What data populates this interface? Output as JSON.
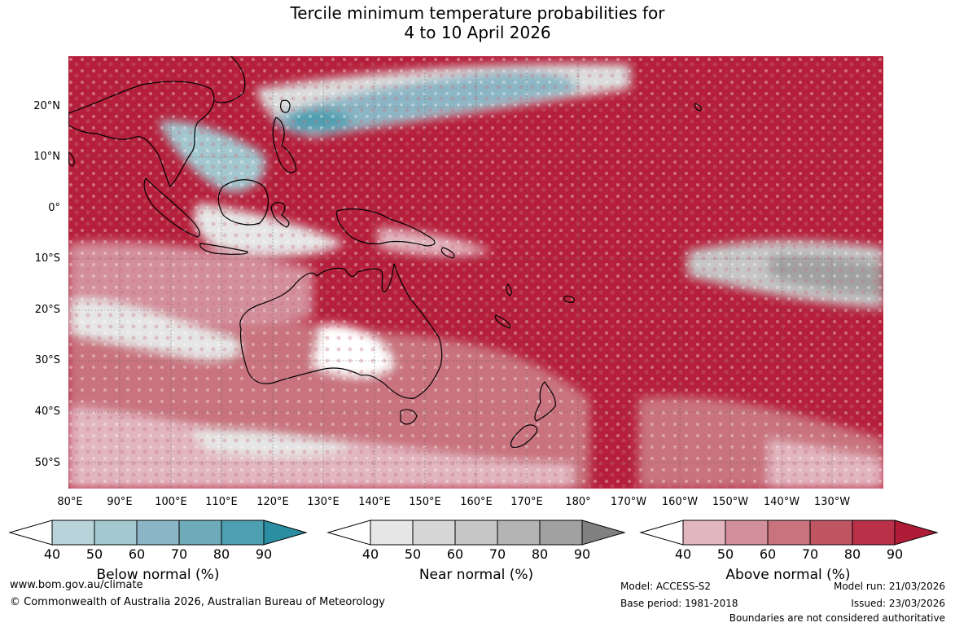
{
  "title": {
    "line1": "Tercile minimum temperature probabilities for",
    "line2": "4 to 10 April 2026"
  },
  "lat_labels": [
    "20°N",
    "10°N",
    "0°",
    "10°S",
    "20°S",
    "30°S",
    "40°S",
    "50°S"
  ],
  "lon_labels": [
    "80°E",
    "90°E",
    "100°E",
    "110°E",
    "120°E",
    "130°E",
    "140°E",
    "150°E",
    "160°E",
    "170°E",
    "180°",
    "170°W",
    "160°W",
    "150°W",
    "140°W",
    "130°W"
  ],
  "colorbars": [
    {
      "id": "below",
      "title": "Below normal (%)",
      "ticks": [
        "40",
        "50",
        "60",
        "70",
        "80",
        "90"
      ],
      "colors": [
        "#ffffff",
        "#b9d3db",
        "#a3c7cf",
        "#8cb6c5",
        "#6dabb9",
        "#4d9fb1",
        "#2c8ea3"
      ]
    },
    {
      "id": "near",
      "title": "Near normal (%)",
      "ticks": [
        "40",
        "50",
        "60",
        "70",
        "80",
        "90"
      ],
      "colors": [
        "#ffffff",
        "#e6e6e6",
        "#d6d6d6",
        "#c6c6c6",
        "#b4b4b4",
        "#a1a1a1",
        "#808080"
      ]
    },
    {
      "id": "above",
      "title": "Above normal (%)",
      "ticks": [
        "40",
        "50",
        "60",
        "70",
        "80",
        "90"
      ],
      "colors": [
        "#ffffff",
        "#e2b6bf",
        "#d48f9c",
        "#c9737f",
        "#c05562",
        "#b93048",
        "#b01c37"
      ]
    }
  ],
  "footer": {
    "url": "www.bom.gov.au/climate",
    "copyright": "© Commonwealth of Australia 2026, Australian Bureau of Meteorology",
    "model": "Model: ACCESS-S2",
    "base_period": "Base period: 1981-2018",
    "model_run": "Model run: 21/03/2026",
    "issued": "Issued: 23/03/2026",
    "boundaries": "Boundaries are not considered authoritative"
  }
}
